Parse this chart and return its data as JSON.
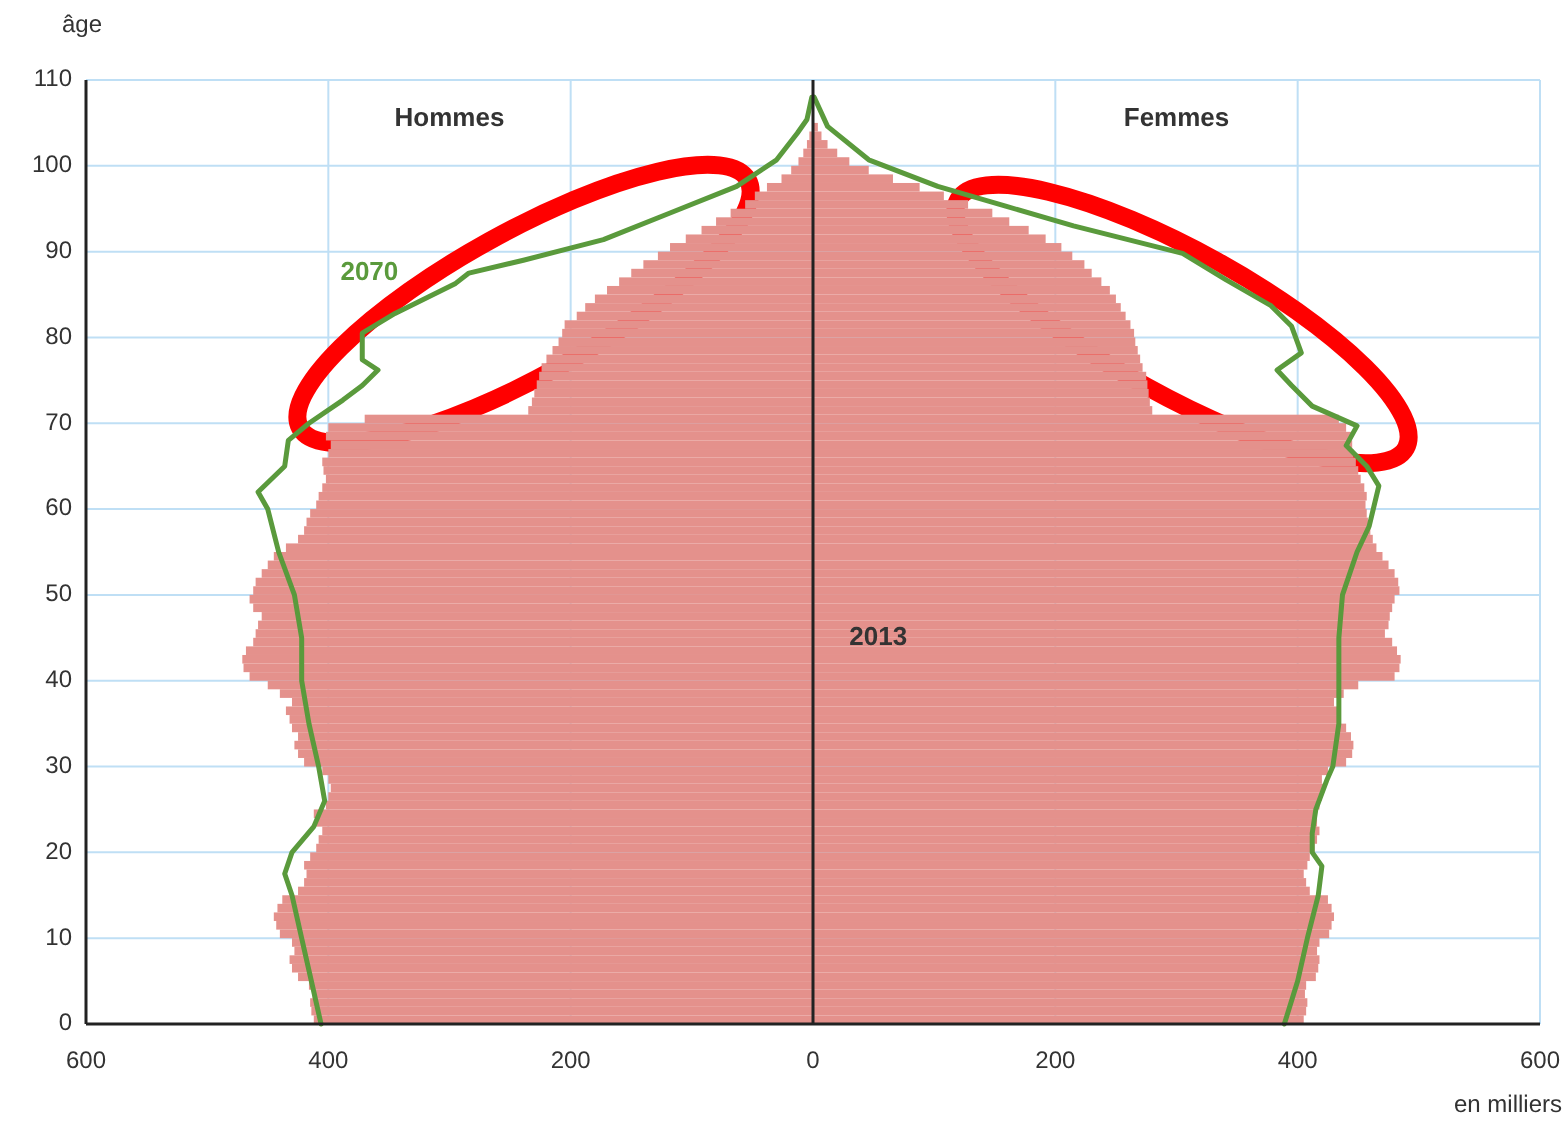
{
  "chart_data": {
    "type": "bar",
    "orientation": "horizontal",
    "stacked": true,
    "xlabel": "en milliers",
    "ylabel": "âge",
    "annotations": [
      "Hommes",
      "Femmes"
    ],
    "x": [
      0,
      1,
      2,
      3,
      4,
      5,
      6,
      7,
      8,
      9,
      10,
      11,
      12,
      13,
      14,
      15,
      16,
      17,
      18,
      19,
      20,
      21,
      22,
      23,
      24,
      25,
      26,
      27,
      28,
      29,
      30,
      31,
      32,
      33,
      34,
      35,
      36,
      37,
      38,
      39,
      40,
      41,
      42,
      43,
      44,
      45,
      46,
      47,
      48,
      49,
      50,
      51,
      52,
      53,
      54,
      55,
      56,
      57,
      58,
      59,
      60,
      61,
      62,
      63,
      64,
      65,
      66,
      67,
      68,
      69,
      70,
      71,
      72,
      73,
      74,
      75,
      76,
      77,
      78,
      79,
      80,
      81,
      82,
      83,
      84,
      85,
      86,
      87,
      88,
      89,
      90,
      91,
      92,
      93,
      94,
      95,
      96,
      97,
      98,
      99,
      100,
      101,
      102,
      103,
      104
    ],
    "series": [
      {
        "color": "#e4918c",
        "values": [
          -412,
          -414,
          -415,
          -413,
          -416,
          -425,
          -430,
          -432,
          -428,
          -430,
          -440,
          -443,
          -445,
          -442,
          -438,
          -425,
          -420,
          -418,
          -420,
          -415,
          -410,
          -408,
          -405,
          -410,
          -412,
          -402,
          -400,
          -398,
          -400,
          -405,
          -420,
          -425,
          -428,
          -425,
          -430,
          -432,
          -435,
          -430,
          -440,
          -450,
          -465,
          -470,
          -471,
          -468,
          -462,
          -460,
          -458,
          -455,
          -462,
          -465,
          -462,
          -460,
          -455,
          -450,
          -445,
          -435,
          -425,
          -420,
          -418,
          -415,
          -410,
          -408,
          -405,
          -402,
          -404,
          -405,
          -400,
          -398,
          -402,
          -400,
          -370,
          -235,
          -232,
          -230,
          -228,
          -226,
          -224,
          -220,
          -215,
          -210,
          -207,
          -205,
          -195,
          -188,
          -180,
          -170,
          -160,
          -150,
          -140,
          -128,
          -118,
          -105,
          -92,
          -80,
          -68,
          -56,
          -48,
          -38,
          -26,
          -18,
          -12,
          -8,
          -5,
          -3,
          null
        ]
      },
      {
        "name": "2013",
        "color": "#e4918c",
        "values": [
          405,
          407,
          408,
          406,
          407,
          415,
          417,
          418,
          416,
          418,
          426,
          428,
          430,
          428,
          425,
          410,
          407,
          405,
          408,
          410,
          414,
          416,
          418,
          416,
          415,
          418,
          420,
          422,
          420,
          425,
          440,
          445,
          446,
          444,
          440,
          435,
          433,
          430,
          438,
          450,
          480,
          484,
          485,
          482,
          478,
          472,
          475,
          476,
          478,
          480,
          484,
          483,
          480,
          475,
          470,
          465,
          462,
          460,
          458,
          457,
          456,
          457,
          455,
          452,
          450,
          448,
          446,
          445,
          444,
          440,
          434,
          280,
          278,
          277,
          276,
          275,
          272,
          270,
          268,
          266,
          265,
          262,
          258,
          254,
          250,
          245,
          238,
          230,
          224,
          214,
          205,
          192,
          178,
          162,
          148,
          128,
          108,
          88,
          66,
          46,
          30,
          20,
          12,
          7,
          4
        ]
      },
      {
        "name": "2070",
        "type": "line",
        "color": "#5a9a3c",
        "x": [
          0,
          5,
          10,
          15,
          17.5,
          20,
          23,
          26,
          30,
          35,
          40,
          45,
          50,
          55,
          60,
          62,
          65,
          68,
          70,
          72.7,
          74.4,
          76.2,
          77.4,
          80.5,
          82.8,
          86.3,
          87.5,
          89,
          91.4,
          94.5,
          97.6,
          100.7,
          103.8,
          105.4,
          108
        ],
        "values": [
          -406,
          -414,
          -422,
          -430,
          -436,
          -430,
          -412,
          -403,
          -408,
          -416,
          -422,
          -422,
          -428,
          -441,
          -450,
          -458,
          -436,
          -433,
          -416,
          -388,
          -372,
          -359,
          -372,
          -372,
          -345,
          -295,
          -284,
          -239,
          -173,
          -118,
          -63,
          -30,
          -13,
          -5,
          -1
        ]
      },
      {
        "type": "line",
        "color": "#5a9a3c",
        "x": [
          0,
          5,
          10,
          15,
          18.4,
          20,
          22.2,
          25,
          28.4,
          30,
          35,
          40,
          45,
          50,
          55,
          58,
          62.7,
          65,
          67.4,
          69.7,
          72,
          74.4,
          76.2,
          78.2,
          81.3,
          83.7,
          86.7,
          89.8,
          93,
          95.3,
          97.6,
          100.7,
          104.6,
          108
        ],
        "values": [
          389,
          400,
          408,
          417,
          420,
          412,
          412,
          415,
          424,
          429,
          434,
          434,
          434,
          437,
          449,
          459,
          467,
          457,
          440,
          449,
          412,
          395,
          383,
          403,
          395,
          378,
          341,
          305,
          215,
          159,
          103,
          46,
          12,
          1
        ]
      }
    ],
    "xlim": [
      -600,
      600
    ],
    "xticks": [
      {
        "value": -600,
        "label": "600"
      },
      {
        "value": -400,
        "label": "400"
      },
      {
        "value": -200,
        "label": "200"
      },
      0,
      200,
      400,
      600
    ],
    "ylim": [
      0,
      110
    ],
    "yticks": [
      0,
      10,
      20,
      30,
      40,
      50,
      60,
      70,
      80,
      90,
      100,
      110
    ],
    "grid": true
  }
}
